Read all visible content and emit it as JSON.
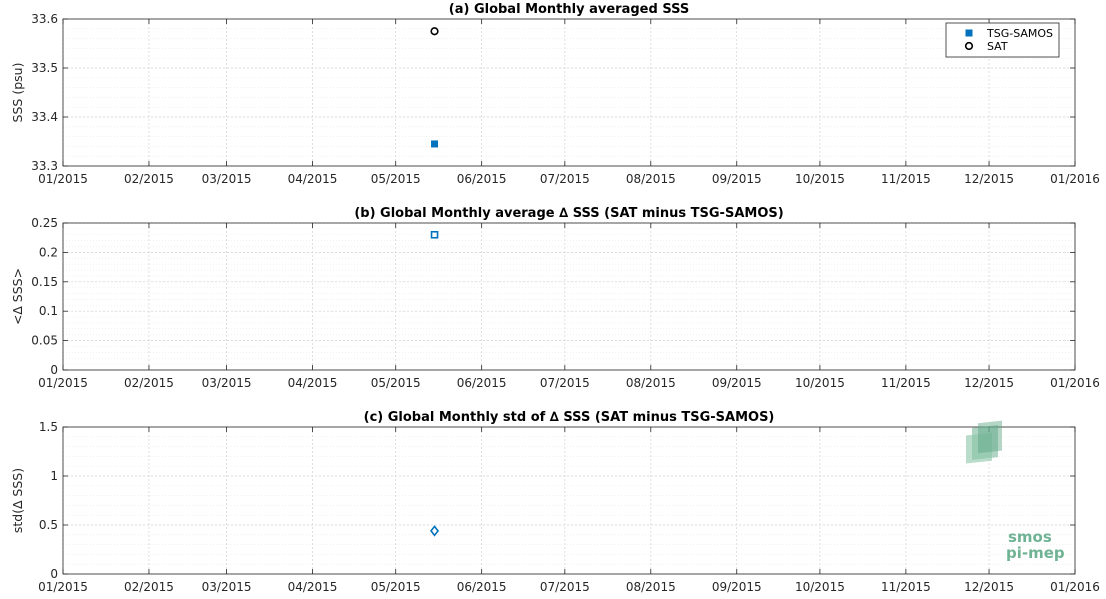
{
  "chart_data": [
    {
      "type": "scatter",
      "title": "(a) Global Monthly averaged SSS",
      "xlabel": "",
      "ylabel": "SSS (psu)",
      "xlim": [
        "2015-01-01",
        "2016-01-01"
      ],
      "ylim": [
        33.3,
        33.6
      ],
      "xticks": [
        "01/2015",
        "02/2015",
        "03/2015",
        "04/2015",
        "05/2015",
        "06/2015",
        "07/2015",
        "08/2015",
        "09/2015",
        "10/2015",
        "11/2015",
        "12/2015",
        "01/2016"
      ],
      "yticks": [
        "33.3",
        "33.4",
        "33.5",
        "33.6"
      ],
      "grid": true,
      "legend_position": "top-right",
      "series": [
        {
          "name": "TSG-SAMOS",
          "marker": "filled-square",
          "color": "#0072bd",
          "x": [
            "2015-05-15"
          ],
          "y": [
            33.345
          ]
        },
        {
          "name": "SAT",
          "marker": "open-circle",
          "color": "#000000",
          "x": [
            "2015-05-15"
          ],
          "y": [
            33.575
          ]
        }
      ]
    },
    {
      "type": "scatter",
      "title": "(b) Global Monthly average ∆ SSS (SAT minus TSG-SAMOS)",
      "xlabel": "",
      "ylabel": "<∆ SSS>",
      "xlim": [
        "2015-01-01",
        "2016-01-01"
      ],
      "ylim": [
        0,
        0.25
      ],
      "xticks": [
        "01/2015",
        "02/2015",
        "03/2015",
        "04/2015",
        "05/2015",
        "06/2015",
        "07/2015",
        "08/2015",
        "09/2015",
        "10/2015",
        "11/2015",
        "12/2015",
        "01/2016"
      ],
      "yticks": [
        "0",
        "0.05",
        "0.1",
        "0.15",
        "0.2",
        "0.25"
      ],
      "grid": true,
      "series": [
        {
          "marker": "open-square",
          "color": "#0072bd",
          "x": [
            "2015-05-15"
          ],
          "y": [
            0.23
          ]
        }
      ]
    },
    {
      "type": "scatter",
      "title": "(c) Global Monthly std of ∆ SSS (SAT minus TSG-SAMOS)",
      "xlabel": "",
      "ylabel": "std(∆ SSS)",
      "xlim": [
        "2015-01-01",
        "2016-01-01"
      ],
      "ylim": [
        0,
        1.5
      ],
      "xticks": [
        "01/2015",
        "02/2015",
        "03/2015",
        "04/2015",
        "05/2015",
        "06/2015",
        "07/2015",
        "08/2015",
        "09/2015",
        "10/2015",
        "11/2015",
        "12/2015",
        "01/2016"
      ],
      "yticks": [
        "0",
        "0.5",
        "1",
        "1.5"
      ],
      "grid": true,
      "series": [
        {
          "marker": "open-diamond",
          "color": "#0072bd",
          "x": [
            "2015-05-15"
          ],
          "y": [
            0.44
          ]
        }
      ]
    }
  ],
  "logo": {
    "line1": "smos",
    "line2": "pi-mep"
  }
}
